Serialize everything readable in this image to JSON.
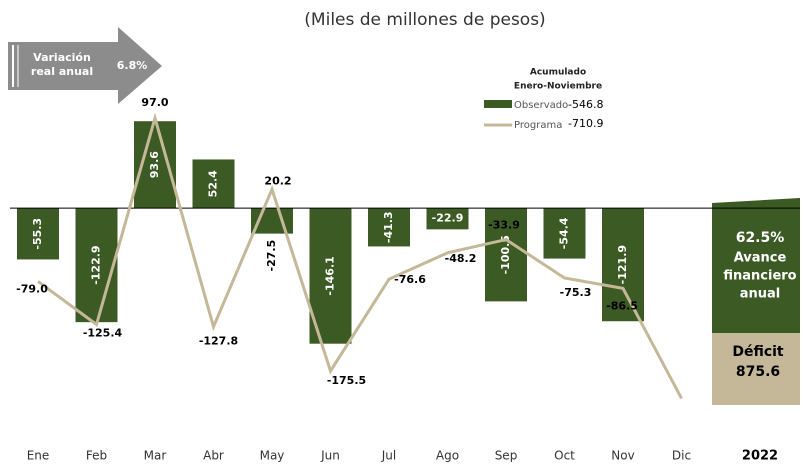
{
  "chart_data": {
    "type": "bar-line",
    "title": "(Miles de millones de pesos)",
    "categories": [
      "Ene",
      "Feb",
      "Mar",
      "Abr",
      "May",
      "Jun",
      "Jul",
      "Ago",
      "Sep",
      "Oct",
      "Nov",
      "Dic"
    ],
    "ylim": [
      -210,
      110
    ],
    "legend_title_lines": [
      "Acumulado",
      "Enero-Noviembre"
    ],
    "series": [
      {
        "name": "Observado",
        "type": "bar",
        "color": "#3b5a24",
        "total": -546.8,
        "values": [
          -55.3,
          -122.9,
          93.6,
          52.4,
          -27.5,
          -146.1,
          -41.3,
          -22.9,
          -100.5,
          -54.4,
          -121.9,
          null
        ]
      },
      {
        "name": "Programa",
        "type": "line",
        "color": "#c5b898",
        "total": -710.9,
        "values": [
          -79.0,
          -125.4,
          97.0,
          -127.8,
          20.2,
          -175.5,
          -76.6,
          -48.2,
          -33.9,
          -75.3,
          -86.5,
          -205
        ],
        "value_labels": [
          "-79.0",
          "-125.4",
          "97.0",
          "-127.8",
          "20.2",
          "-175.5",
          "-76.6",
          "-48.2",
          "-33.9",
          "-75.3",
          "-86.5",
          null
        ]
      }
    ],
    "annotation": {
      "label_lines": [
        "Variación",
        "real anual"
      ],
      "value": {
        "value": 6.8,
        "label": "6.8%"
      }
    },
    "summary": {
      "avance_value": {
        "value": 62.5,
        "label": "62.5%"
      },
      "avance_lines": [
        "Avance",
        "financiero",
        "anual"
      ],
      "deficit_label": "Déficit",
      "deficit_value": 875.6,
      "year": "2022"
    }
  }
}
